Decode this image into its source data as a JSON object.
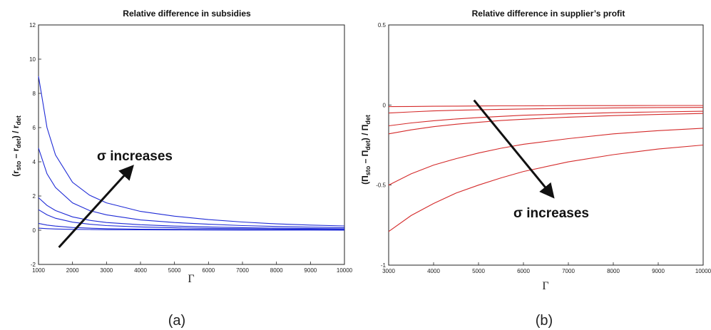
{
  "chart_data": [
    {
      "type": "line",
      "title": "Relative difference in subsidies",
      "xlabel": "Γ",
      "ylabel": "(r_sto – r_det) / r_det",
      "xlim": [
        1000,
        10000
      ],
      "ylim": [
        -2,
        12
      ],
      "xticks": [
        "1000",
        "2000",
        "3000",
        "4000",
        "5000",
        "6000",
        "7000",
        "8000",
        "9000",
        "10000"
      ],
      "yticks": [
        "-2",
        "0",
        "2",
        "4",
        "6",
        "8",
        "10",
        "12"
      ],
      "line_color": "#1f2bd6",
      "grid": false,
      "series": [
        {
          "x": [
            1000,
            1250,
            1500,
            2000,
            2500,
            3000,
            4000,
            5000,
            6000,
            7000,
            8000,
            9000,
            10000
          ],
          "values": [
            9.0,
            6.0,
            4.4,
            2.8,
            2.05,
            1.6,
            1.1,
            0.82,
            0.62,
            0.48,
            0.37,
            0.3,
            0.25
          ]
        },
        {
          "x": [
            1000,
            1250,
            1500,
            2000,
            2500,
            3000,
            4000,
            5000,
            6000,
            7000,
            8000,
            9000,
            10000
          ],
          "values": [
            4.8,
            3.3,
            2.5,
            1.6,
            1.15,
            0.9,
            0.6,
            0.45,
            0.35,
            0.27,
            0.22,
            0.18,
            0.15
          ]
        },
        {
          "x": [
            1000,
            1250,
            1500,
            2000,
            2500,
            3000,
            4000,
            5000,
            6000,
            7000,
            8000,
            9000,
            10000
          ],
          "values": [
            1.9,
            1.45,
            1.15,
            0.78,
            0.58,
            0.45,
            0.32,
            0.24,
            0.19,
            0.15,
            0.12,
            0.1,
            0.08
          ]
        },
        {
          "x": [
            1000,
            1250,
            1500,
            2000,
            2500,
            3000,
            4000,
            5000,
            6000,
            7000,
            8000,
            9000,
            10000
          ],
          "values": [
            1.2,
            0.9,
            0.7,
            0.47,
            0.35,
            0.27,
            0.19,
            0.14,
            0.11,
            0.09,
            0.07,
            0.06,
            0.05
          ]
        },
        {
          "x": [
            1000,
            1250,
            1500,
            2000,
            2500,
            3000,
            4000,
            5000,
            6000,
            7000,
            8000,
            9000,
            10000
          ],
          "values": [
            0.4,
            0.3,
            0.24,
            0.16,
            0.12,
            0.09,
            0.06,
            0.05,
            0.04,
            0.03,
            0.025,
            0.02,
            0.02
          ]
        },
        {
          "x": [
            1000,
            1250,
            1500,
            2000,
            2500,
            3000,
            4000,
            5000,
            6000,
            7000,
            8000,
            9000,
            10000
          ],
          "values": [
            0.12,
            0.09,
            0.07,
            0.05,
            0.04,
            0.03,
            0.02,
            0.015,
            0.012,
            0.01,
            0.008,
            0.007,
            0.006
          ]
        }
      ],
      "annotation": {
        "text": "σ increases",
        "arrow_from": [
          1600,
          -1.0
        ],
        "arrow_to": [
          3750,
          3.7
        ]
      },
      "caption": "(a)"
    },
    {
      "type": "line",
      "title": "Relative difference in supplier’s profit",
      "xlabel": "Γ",
      "ylabel": "(Π_sto – Π_det) / Π_det",
      "xlim": [
        3000,
        10000
      ],
      "ylim": [
        -1,
        0.5
      ],
      "xticks": [
        "3000",
        "4000",
        "5000",
        "6000",
        "7000",
        "8000",
        "9000",
        "10000"
      ],
      "yticks": [
        "-1",
        "-0.5",
        "0",
        "0.5"
      ],
      "line_color": "#d42a2a",
      "grid": false,
      "series": [
        {
          "x": [
            3000,
            3500,
            4000,
            4500,
            5000,
            5500,
            6000,
            7000,
            8000,
            9000,
            10000
          ],
          "values": [
            -0.79,
            -0.69,
            -0.615,
            -0.55,
            -0.5,
            -0.455,
            -0.415,
            -0.355,
            -0.31,
            -0.275,
            -0.25
          ]
        },
        {
          "x": [
            3000,
            3500,
            4000,
            4500,
            5000,
            5500,
            6000,
            7000,
            8000,
            9000,
            10000
          ],
          "values": [
            -0.5,
            -0.43,
            -0.375,
            -0.335,
            -0.3,
            -0.27,
            -0.245,
            -0.21,
            -0.18,
            -0.16,
            -0.145
          ]
        },
        {
          "x": [
            3000,
            3500,
            4000,
            4500,
            5000,
            5500,
            6000,
            7000,
            8000,
            9000,
            10000
          ],
          "values": [
            -0.18,
            -0.155,
            -0.135,
            -0.12,
            -0.108,
            -0.097,
            -0.089,
            -0.076,
            -0.066,
            -0.059,
            -0.053
          ]
        },
        {
          "x": [
            3000,
            3500,
            4000,
            4500,
            5000,
            5500,
            6000,
            7000,
            8000,
            9000,
            10000
          ],
          "values": [
            -0.13,
            -0.112,
            -0.098,
            -0.087,
            -0.078,
            -0.071,
            -0.064,
            -0.055,
            -0.048,
            -0.043,
            -0.039
          ]
        },
        {
          "x": [
            3000,
            3500,
            4000,
            4500,
            5000,
            5500,
            6000,
            7000,
            8000,
            9000,
            10000
          ],
          "values": [
            -0.05,
            -0.043,
            -0.037,
            -0.033,
            -0.03,
            -0.027,
            -0.025,
            -0.021,
            -0.018,
            -0.016,
            -0.015
          ]
        },
        {
          "x": [
            3000,
            3500,
            4000,
            4500,
            5000,
            5500,
            6000,
            7000,
            8000,
            9000,
            10000
          ],
          "values": [
            -0.01,
            -0.009,
            -0.008,
            -0.007,
            -0.006,
            -0.005,
            -0.005,
            -0.004,
            -0.004,
            -0.003,
            -0.003
          ]
        }
      ],
      "annotation": {
        "text": "σ increases",
        "arrow_from": [
          4900,
          0.03
        ],
        "arrow_to": [
          6650,
          -0.57
        ]
      },
      "caption": "(b)"
    }
  ]
}
